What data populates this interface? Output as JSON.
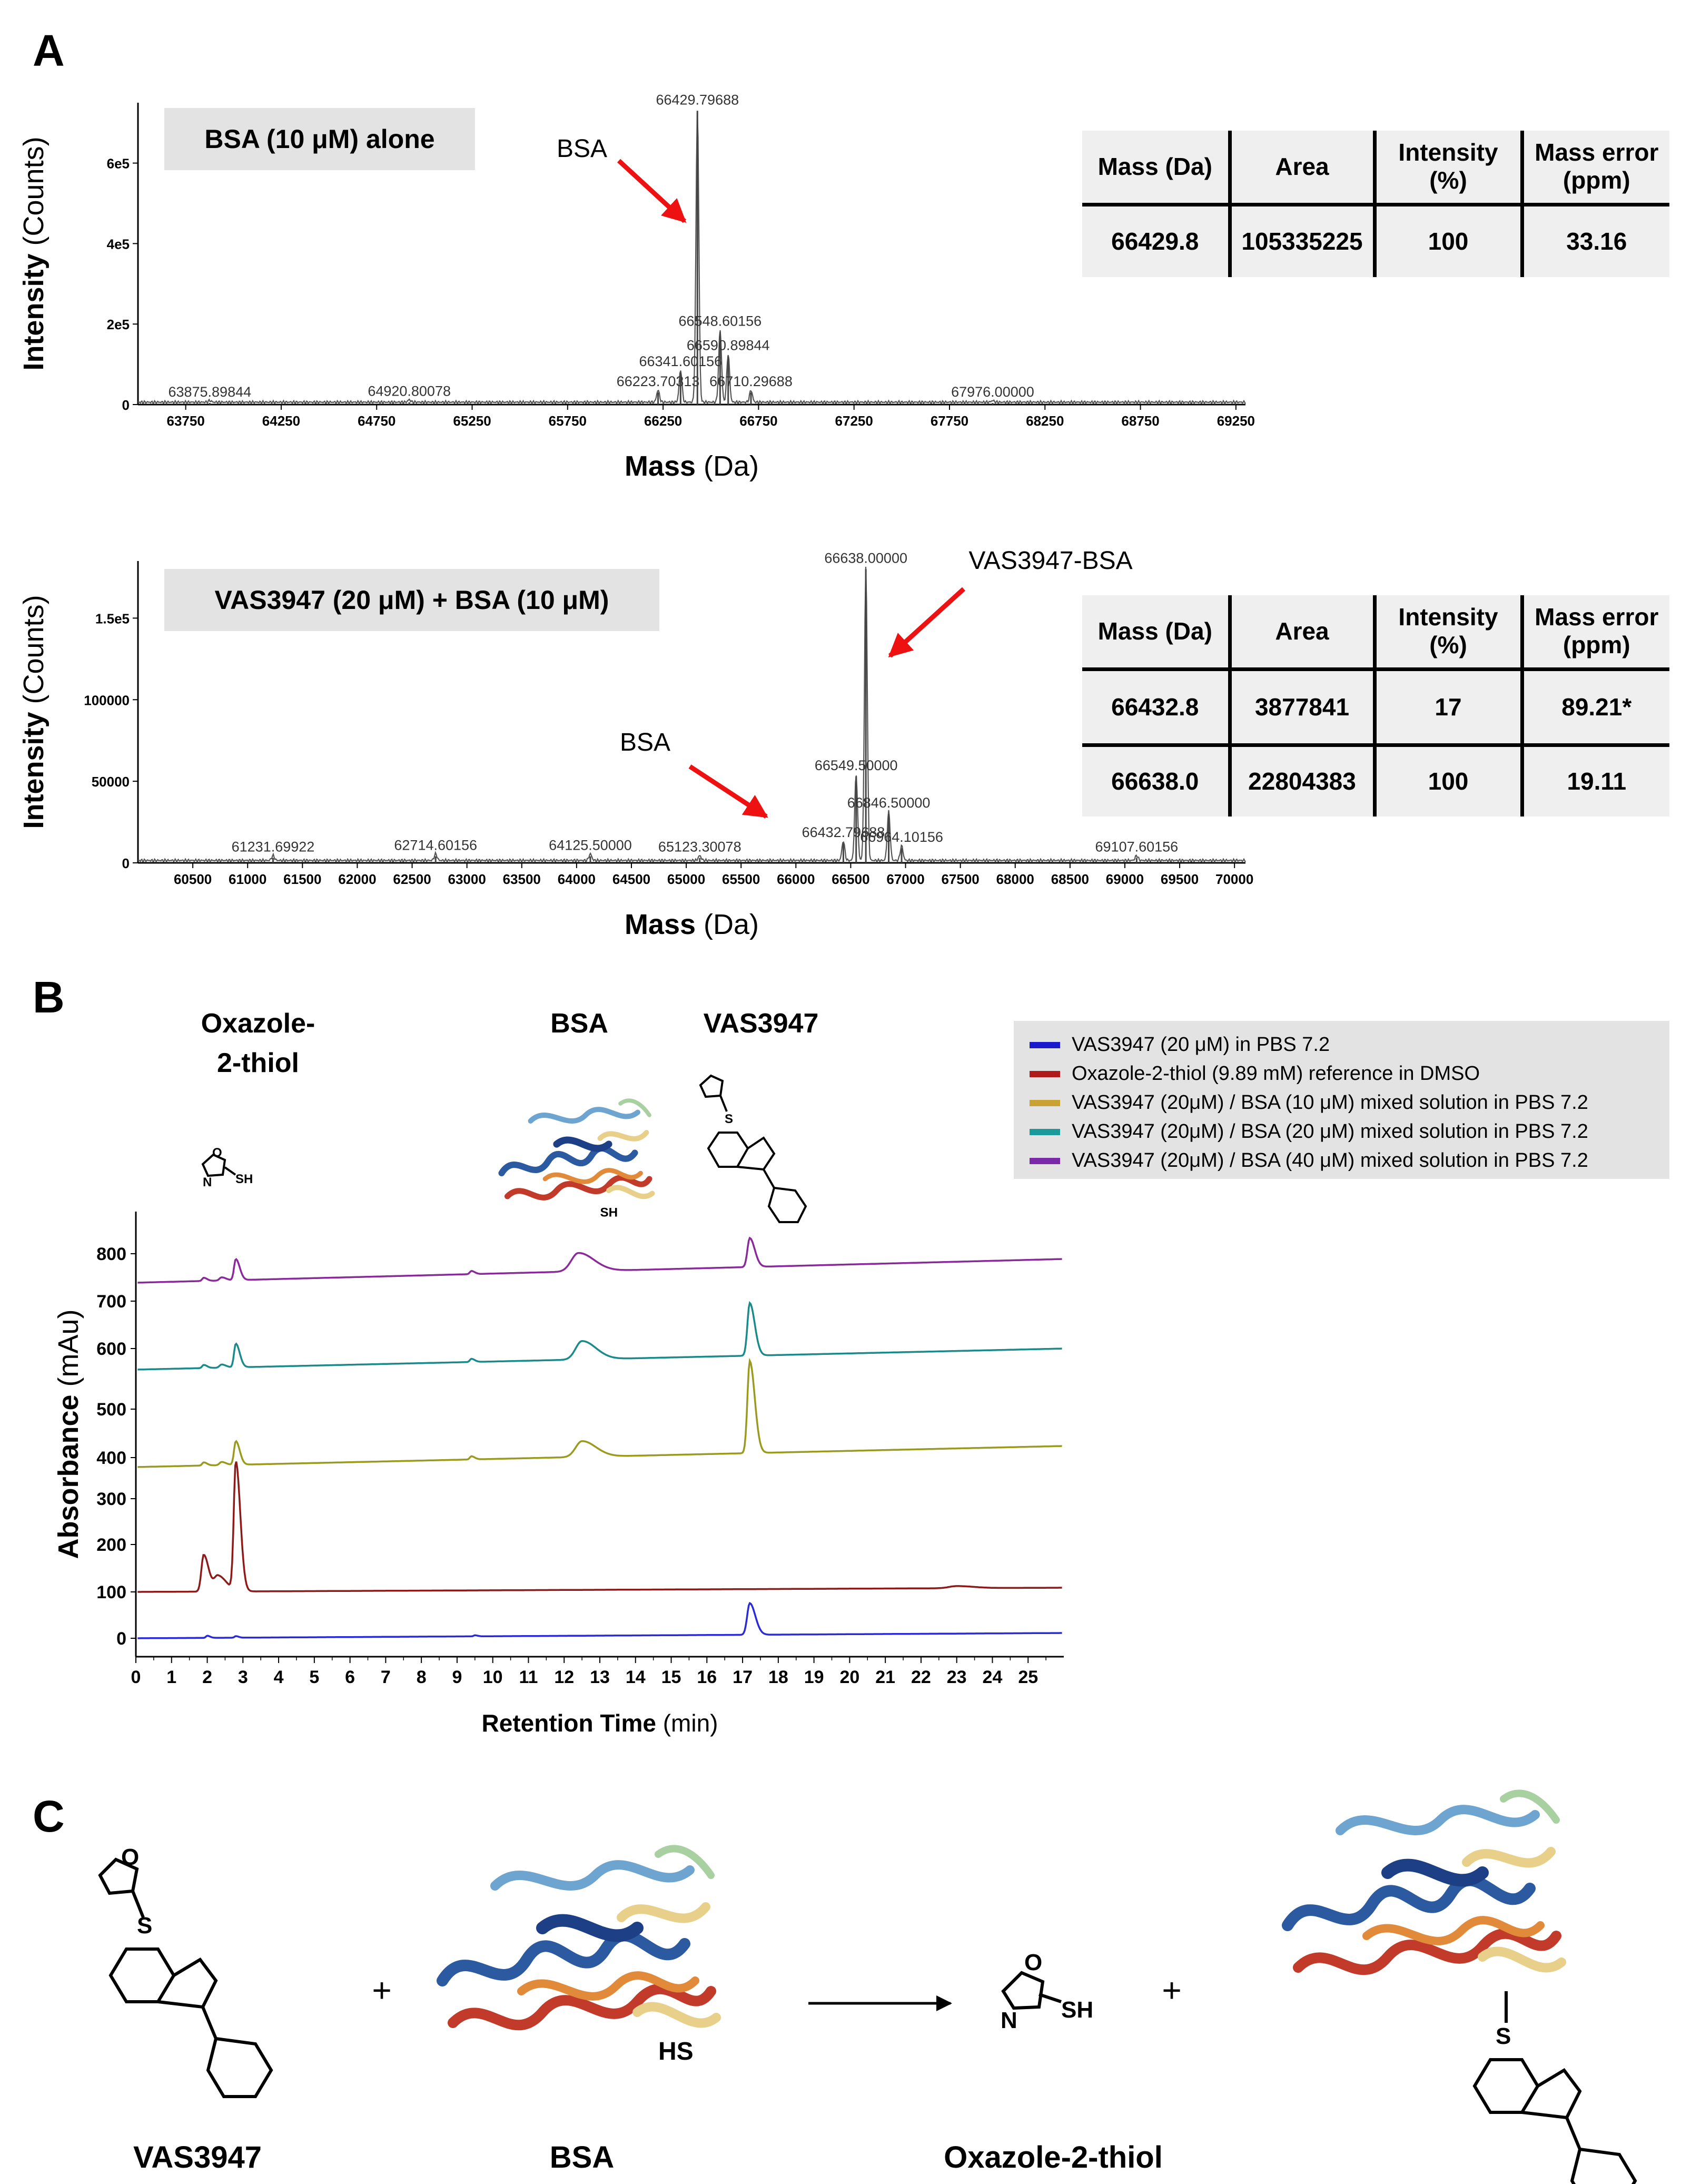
{
  "panel_labels": {
    "A": "A",
    "B": "B",
    "C": "C"
  },
  "chart_data": [
    {
      "type": "line",
      "boxlabel": "BSA (10 μM) alone",
      "xlabel_bold": "Mass",
      "xlabel_unit": "(Da)",
      "ylabel_bold": "Intensity",
      "ylabel_unit": "(Counts)",
      "xlim": [
        63500,
        69300
      ],
      "ylim": [
        0,
        750000
      ],
      "xticks": [
        63750,
        64250,
        64750,
        65250,
        65750,
        66250,
        66750,
        67250,
        67750,
        68250,
        68750,
        69250
      ],
      "yticks": [
        {
          "v": 0,
          "label": "0"
        },
        {
          "v": 200000,
          "label": "2e5"
        },
        {
          "v": 400000,
          "label": "4e5"
        },
        {
          "v": 600000,
          "label": "6e5"
        }
      ],
      "peaks": [
        {
          "x": 63875.89844,
          "y": 4000,
          "label": "63875.89844"
        },
        {
          "x": 64920.80078,
          "y": 6000,
          "label": "64920.80078"
        },
        {
          "x": 66223.70313,
          "y": 30000,
          "label": "66223.70313"
        },
        {
          "x": 66341.60156,
          "y": 80000,
          "label": "66341.60156"
        },
        {
          "x": 66429.79688,
          "y": 730000,
          "label": "66429.79688"
        },
        {
          "x": 66548.60156,
          "y": 180000,
          "label": "66548.60156"
        },
        {
          "x": 66590.89844,
          "y": 120000,
          "label": "66590.89844"
        },
        {
          "x": 66710.29688,
          "y": 30000,
          "label": "66710.29688"
        },
        {
          "x": 67976.0,
          "y": 4000,
          "label": "67976.00000"
        }
      ],
      "annotations": [
        {
          "text": "BSA",
          "x": 66429.8
        }
      ],
      "table": {
        "headers": [
          "Mass (Da)",
          "Area",
          "Intensity (%)",
          "Mass error (ppm)"
        ],
        "rows": [
          [
            "66429.8",
            "105335225",
            "100",
            "33.16"
          ]
        ]
      }
    },
    {
      "type": "line",
      "boxlabel": "VAS3947 (20 μM) + BSA (10 μM)",
      "xlabel_bold": "Mass",
      "xlabel_unit": "(Da)",
      "ylabel_bold": "Intensity",
      "ylabel_unit": "(Counts)",
      "xlim": [
        60000,
        70100
      ],
      "ylim": [
        0,
        185000
      ],
      "xticks": [
        60500,
        61000,
        61500,
        62000,
        62500,
        63000,
        63500,
        64000,
        64500,
        65000,
        65500,
        66000,
        66500,
        67000,
        67500,
        68000,
        68500,
        69000,
        69500,
        70000
      ],
      "yticks": [
        {
          "v": 0,
          "label": "0"
        },
        {
          "v": 50000,
          "label": "50000"
        },
        {
          "v": 100000,
          "label": "100000"
        },
        {
          "v": 150000,
          "label": "1.5e5"
        }
      ],
      "peaks": [
        {
          "x": 61231.69922,
          "y": 3000,
          "label": "61231.69922"
        },
        {
          "x": 62714.60156,
          "y": 4000,
          "label": "62714.60156"
        },
        {
          "x": 64125.5,
          "y": 4000,
          "label": "64125.50000"
        },
        {
          "x": 65123.30078,
          "y": 3000,
          "label": "65123.30078"
        },
        {
          "x": 66432.79688,
          "y": 12000,
          "label": "66432.79688"
        },
        {
          "x": 66549.5,
          "y": 53000,
          "label": "66549.50000"
        },
        {
          "x": 66638.0,
          "y": 180000,
          "label": "66638.00000"
        },
        {
          "x": 66846.5,
          "y": 30000,
          "label": "66846.50000"
        },
        {
          "x": 66964.10156,
          "y": 9000,
          "label": "66964.10156"
        },
        {
          "x": 69107.60156,
          "y": 3000,
          "label": "69107.60156"
        }
      ],
      "annotations": [
        {
          "text": "BSA",
          "x": 66432.8
        },
        {
          "text": "VAS3947-BSA",
          "x": 66638.0
        }
      ],
      "table": {
        "headers": [
          "Mass (Da)",
          "Area",
          "Intensity (%)",
          "Mass error (ppm)"
        ],
        "rows": [
          [
            "66432.8",
            "3877841",
            "17",
            "89.21*"
          ],
          [
            "66638.0",
            "22804383",
            "100",
            "19.11"
          ]
        ]
      }
    },
    {
      "type": "line",
      "xlabel_bold": "Retention Time",
      "xlabel_unit": "(min)",
      "ylabel_bold": "Absorbance",
      "ylabel_unit": "(mAu)",
      "xlim": [
        0,
        26
      ],
      "xticks": [
        0,
        1,
        2,
        3,
        4,
        5,
        6,
        7,
        8,
        9,
        10,
        11,
        12,
        13,
        14,
        15,
        16,
        17,
        18,
        19,
        20,
        21,
        22,
        23,
        24,
        25
      ],
      "yticklabels": [
        "0",
        "100",
        "200",
        "300",
        "400",
        "500",
        "600",
        "700",
        "800"
      ],
      "series": [
        {
          "name": "VAS3947 (20 μM) in PBS 7.2",
          "color": "#1a1acd"
        },
        {
          "name": "Oxazole-2-thiol (9.89 mM) reference in DMSO",
          "color": "#b01a1a"
        },
        {
          "name": "VAS3947 (20μM) / BSA (10 μM) mixed solution in PBS 7.2",
          "color": "#c9a233"
        },
        {
          "name": "VAS3947 (20μM) / BSA (20 μM) mixed solution in PBS 7.2",
          "color": "#1a9a9a"
        },
        {
          "name": "VAS3947 (20μM) / BSA (40 μM) mixed solution in PBS 7.2",
          "color": "#7a2aa8"
        }
      ],
      "trace_colors": [
        "#2a2ad8",
        "#8e1a1a",
        "#9a9a20",
        "#1a8a8a",
        "#8a2a9a"
      ],
      "peak_labels": {
        "thiol_line1": "Oxazole-",
        "thiol_line2": "2-thiol",
        "bsa": "BSA",
        "vas": "VAS3947"
      },
      "struct_text": {
        "sh": "SH",
        "s": "S",
        "o": "O",
        "n": "N"
      }
    }
  ],
  "scheme": {
    "plus": "+",
    "reactant1": "VAS3947",
    "reactant2": "BSA",
    "product1": "Oxazole-2-thiol",
    "hs": "HS",
    "sh": "SH",
    "s": "S",
    "o": "O",
    "n": "N"
  }
}
